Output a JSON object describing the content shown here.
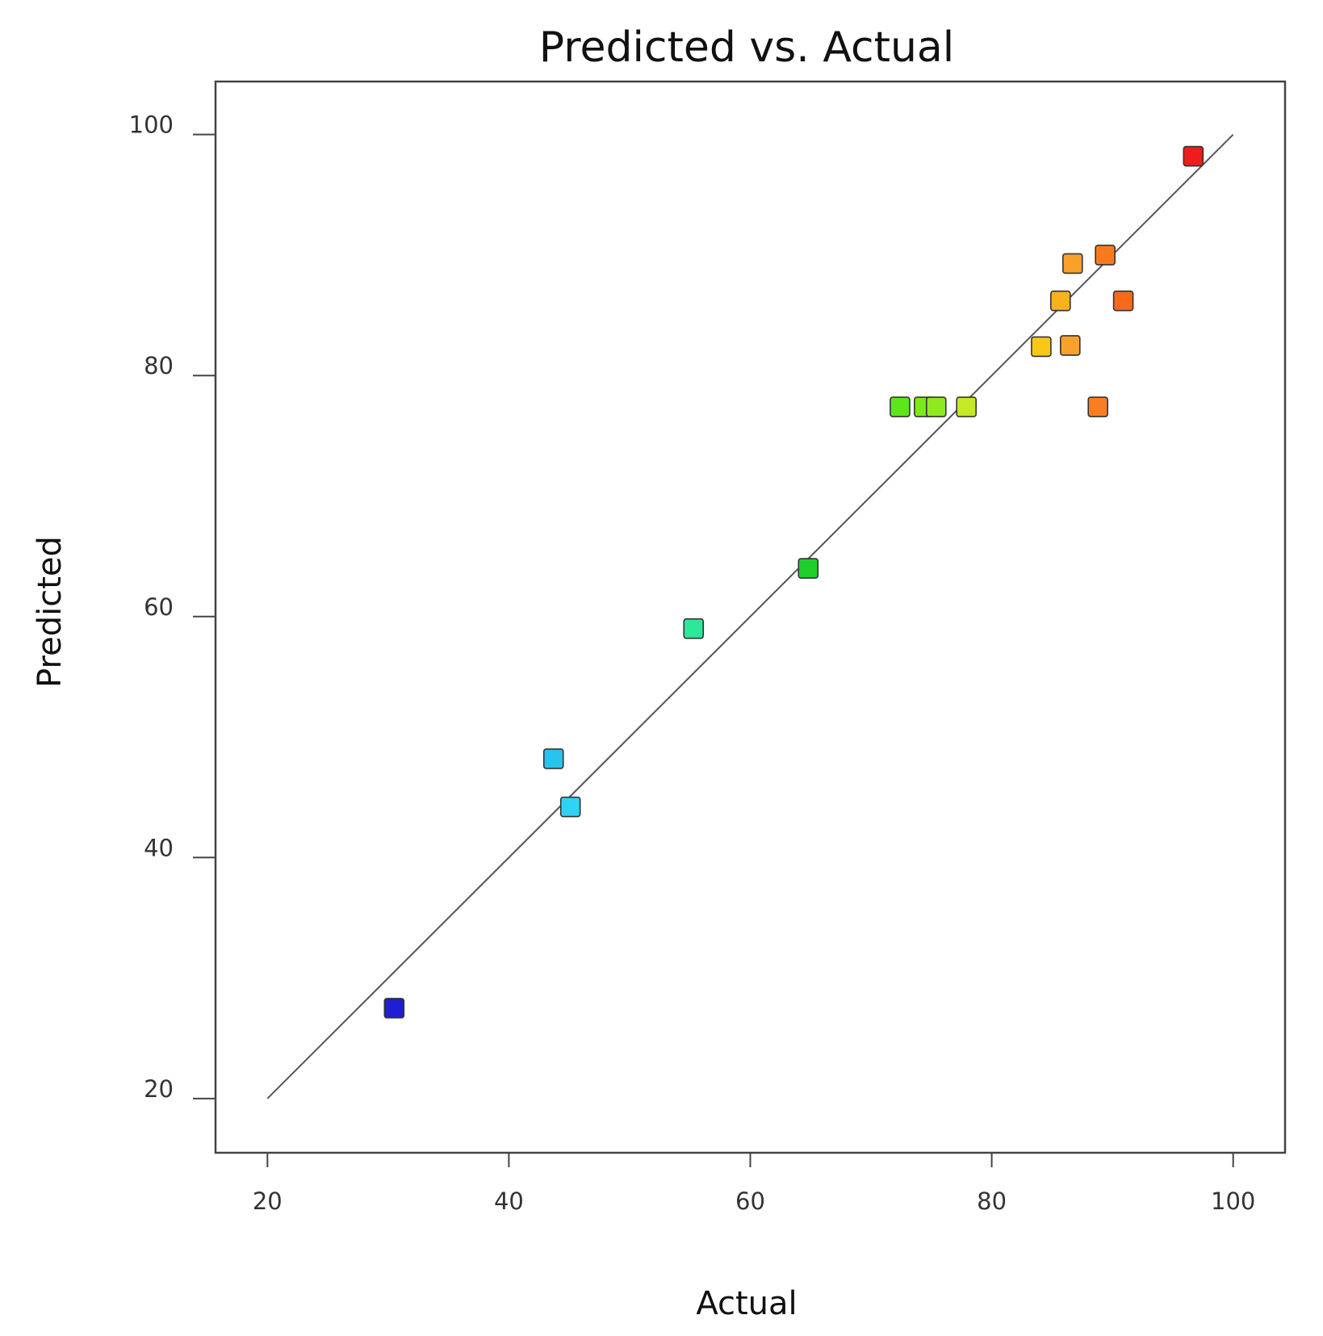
{
  "chart_data": {
    "type": "scatter",
    "title": "Predicted vs. Actual",
    "xlabel": "Actual",
    "ylabel": "Predicted",
    "xlim": [
      15.7,
      104.3
    ],
    "ylim": [
      15.5,
      104.4
    ],
    "xticks": [
      20,
      40,
      60,
      80,
      100
    ],
    "yticks": [
      20,
      40,
      60,
      80,
      100
    ],
    "grid": false,
    "reference_line": {
      "x": [
        20,
        100
      ],
      "y": [
        20,
        100
      ],
      "color": "#555555"
    },
    "points": [
      {
        "x": 30.5,
        "y": 27.5,
        "color": "#1f1fd0"
      },
      {
        "x": 43.7,
        "y": 48.2,
        "color": "#29c3ef"
      },
      {
        "x": 45.1,
        "y": 44.2,
        "color": "#2fd2f2"
      },
      {
        "x": 55.3,
        "y": 59.0,
        "color": "#2ee89a"
      },
      {
        "x": 64.8,
        "y": 64.0,
        "color": "#1ecf2a"
      },
      {
        "x": 72.4,
        "y": 77.4,
        "color": "#5fe61b"
      },
      {
        "x": 74.4,
        "y": 77.4,
        "color": "#7ee81d"
      },
      {
        "x": 75.4,
        "y": 77.4,
        "color": "#8eea1f"
      },
      {
        "x": 77.9,
        "y": 77.4,
        "color": "#c5ea22"
      },
      {
        "x": 84.1,
        "y": 82.4,
        "color": "#f8c718"
      },
      {
        "x": 85.7,
        "y": 86.2,
        "color": "#f9b11c"
      },
      {
        "x": 86.5,
        "y": 82.5,
        "color": "#f9a22b"
      },
      {
        "x": 86.7,
        "y": 89.3,
        "color": "#f9a02a"
      },
      {
        "x": 88.8,
        "y": 77.4,
        "color": "#f97e22"
      },
      {
        "x": 89.4,
        "y": 90.0,
        "color": "#f97a1c"
      },
      {
        "x": 90.9,
        "y": 86.2,
        "color": "#f86a1a"
      },
      {
        "x": 96.7,
        "y": 98.2,
        "color": "#ee1c1c"
      }
    ]
  }
}
